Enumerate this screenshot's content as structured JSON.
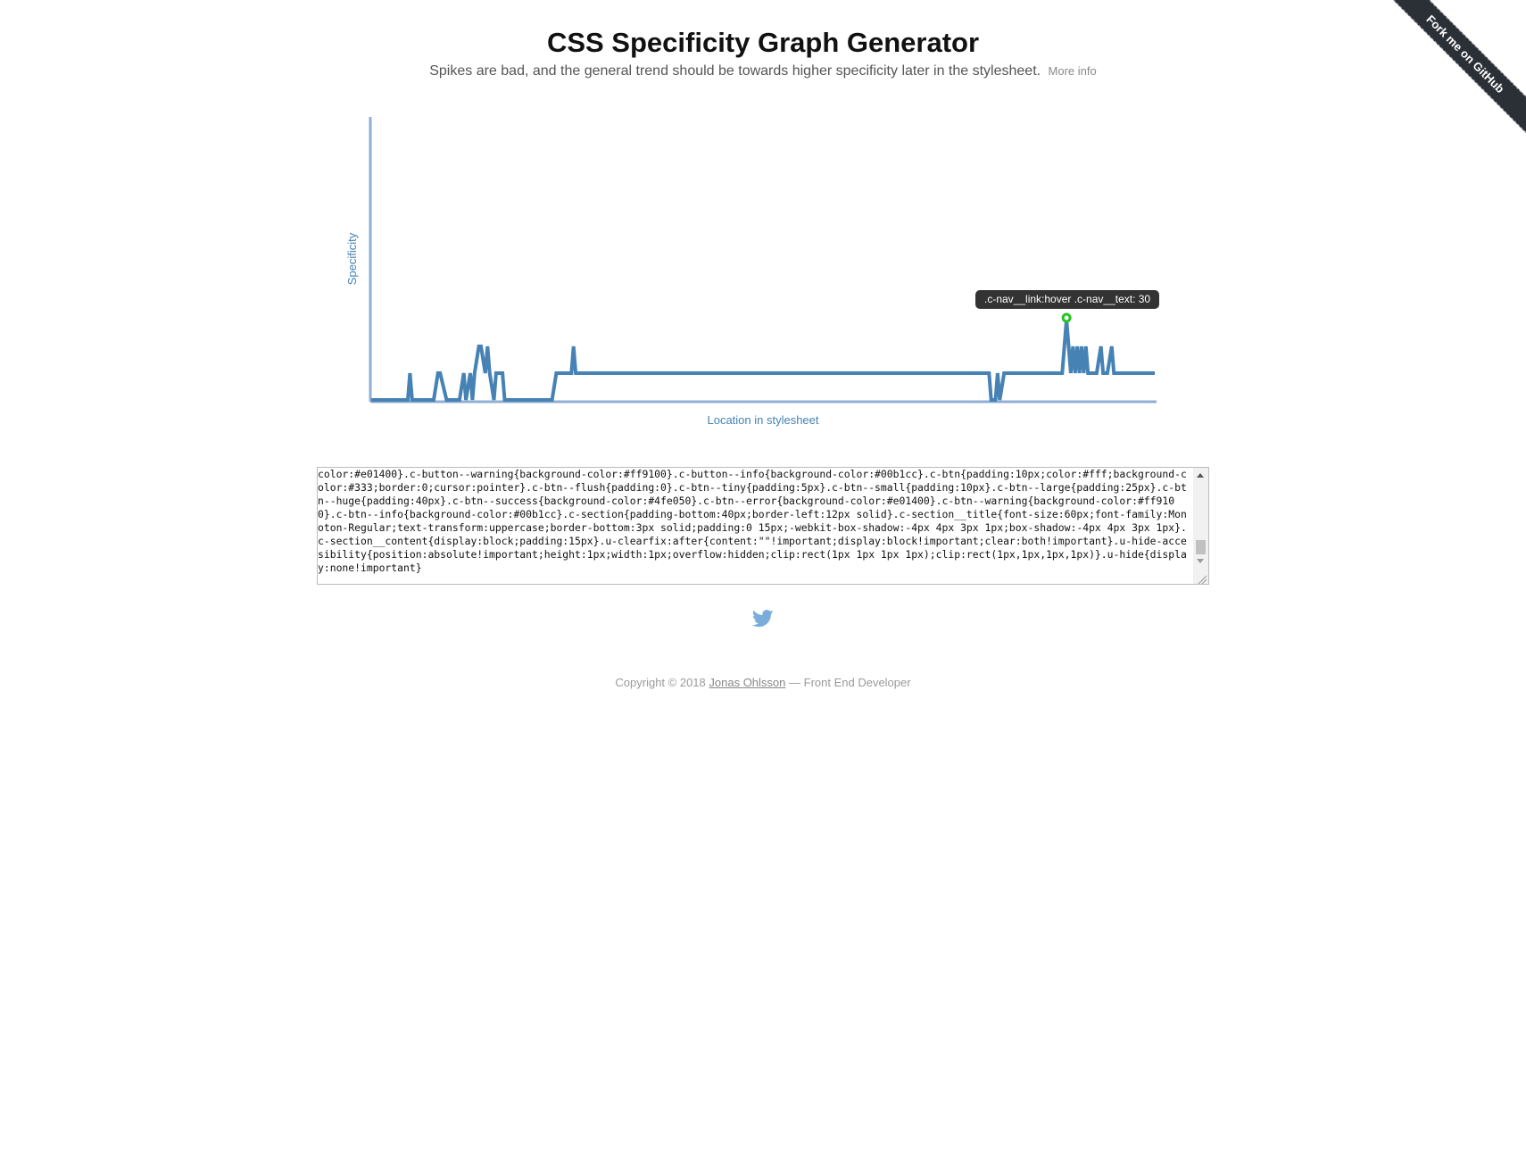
{
  "header": {
    "title": "CSS Specificity Graph Generator",
    "subtitle": "Spikes are bad, and the general trend should be towards higher specificity later in the stylesheet.",
    "more_info": "More info"
  },
  "ribbon": {
    "label": "Fork me on GitHub"
  },
  "chart_data": {
    "type": "line",
    "ylabel": "Specificity",
    "xlabel": "Location in stylesheet",
    "color": "#4682b4",
    "axis_color": "#8fb0d4",
    "ylim": [
      0,
      100
    ],
    "x": [
      0,
      10,
      17,
      18,
      19,
      25,
      29,
      31,
      32,
      35,
      38,
      39,
      41,
      43,
      44,
      46,
      47,
      48,
      50,
      51,
      53,
      54,
      55,
      57,
      58,
      59,
      60,
      61,
      62,
      63,
      66,
      67,
      71,
      76,
      84,
      86,
      87,
      88,
      89,
      92,
      93,
      94,
      95,
      96,
      97,
      98,
      100,
      102,
      104,
      108,
      116,
      118,
      127,
      130,
      135,
      145,
      155,
      165,
      175,
      185,
      195,
      205,
      215,
      225,
      235,
      245,
      255,
      265,
      275,
      282,
      285,
      287,
      288,
      290,
      291,
      292,
      294,
      296,
      298,
      300,
      302,
      306,
      310,
      314,
      317,
      319,
      320,
      321,
      322,
      323,
      324,
      325,
      326,
      327,
      328,
      329,
      330,
      331,
      332,
      333,
      334,
      335,
      336,
      337,
      339,
      340,
      341,
      342,
      344,
      345,
      347,
      350,
      352,
      353,
      355,
      356,
      358,
      360,
      362,
      364
    ],
    "y": [
      0,
      0,
      0,
      10,
      0,
      0,
      0,
      10,
      10,
      0,
      0,
      0,
      0,
      10,
      0,
      10,
      0,
      10,
      20,
      20,
      10,
      20,
      10,
      0,
      10,
      10,
      10,
      10,
      0,
      0,
      0,
      0,
      0,
      0,
      0,
      10,
      10,
      10,
      10,
      10,
      10,
      20,
      10,
      10,
      10,
      10,
      10,
      10,
      10,
      10,
      10,
      10,
      10,
      10,
      10,
      10,
      10,
      10,
      10,
      10,
      10,
      10,
      10,
      10,
      10,
      10,
      10,
      10,
      10,
      10,
      10,
      10,
      0,
      0,
      10,
      0,
      10,
      10,
      10,
      10,
      10,
      10,
      10,
      10,
      10,
      10,
      10,
      10,
      20,
      30,
      20,
      10,
      20,
      10,
      20,
      10,
      20,
      10,
      20,
      10,
      10,
      10,
      10,
      10,
      20,
      10,
      10,
      10,
      20,
      10,
      10,
      10,
      10,
      10,
      10,
      10,
      10,
      10,
      10,
      10
    ],
    "highlight": {
      "label": ".c-nav__link:hover .c-nav__text: 30"
    }
  },
  "textarea": {
    "content": "color:#e01400}.c-button--warning{background-color:#ff9100}.c-button--info{background-color:#00b1cc}.c-btn{padding:10px;color:#fff;background-color:#333;border:0;cursor:pointer}.c-btn--flush{padding:0}.c-btn--tiny{padding:5px}.c-btn--small{padding:10px}.c-btn--large{padding:25px}.c-btn--huge{padding:40px}.c-btn--success{background-color:#4fe050}.c-btn--error{background-color:#e01400}.c-btn--warning{background-color:#ff9100}.c-btn--info{background-color:#00b1cc}.c-section{padding-bottom:40px;border-left:12px solid}.c-section__title{font-size:60px;font-family:Monoton-Regular;text-transform:uppercase;border-bottom:3px solid;padding:0 15px;-webkit-box-shadow:-4px 4px 3px 1px;box-shadow:-4px 4px 3px 1px}.c-section__content{display:block;padding:15px}.u-clearfix:after{content:\"\"!important;display:block!important;clear:both!important}.u-hide-accesibility{position:absolute!important;height:1px;width:1px;overflow:hidden;clip:rect(1px 1px 1px 1px);clip:rect(1px,1px,1px,1px)}.u-hide{display:none!important}"
  },
  "footer": {
    "prefix": "Copyright © 2018",
    "author": "Jonas Ohlsson",
    "suffix": "— Front End Developer"
  }
}
